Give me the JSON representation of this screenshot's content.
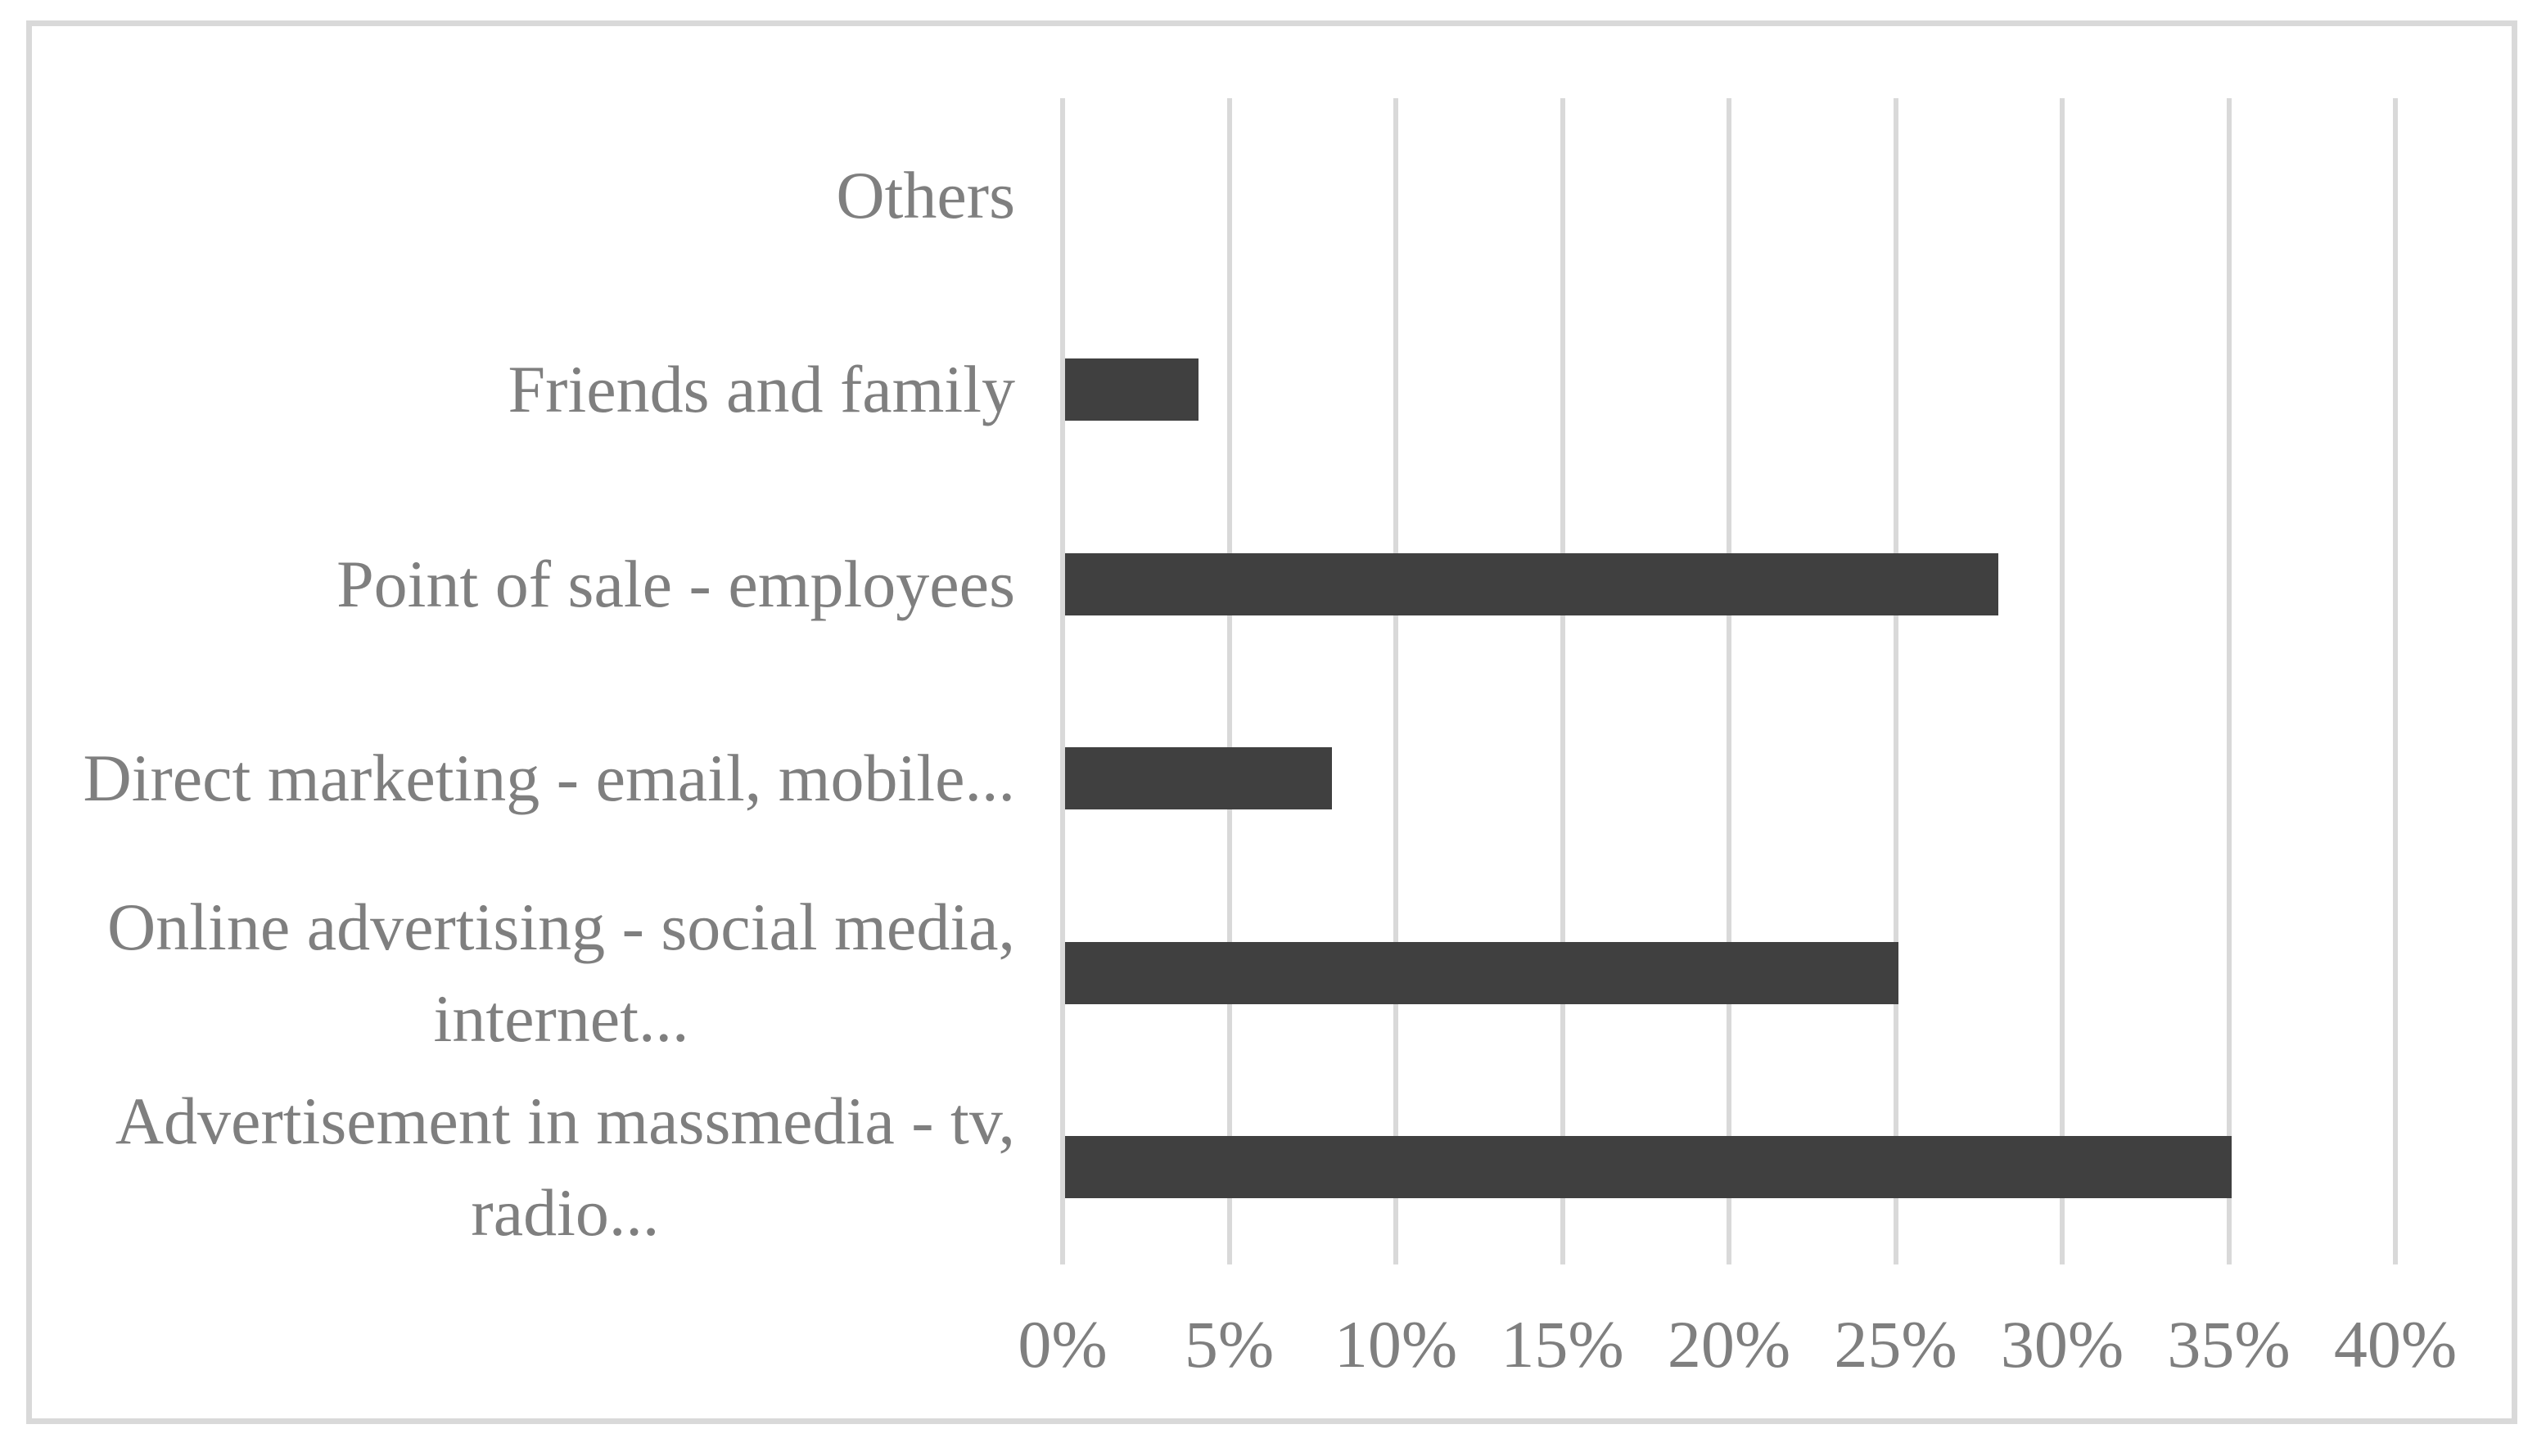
{
  "chart_data": {
    "type": "bar",
    "orientation": "horizontal",
    "title": "",
    "categories": [
      "Others",
      "Friends and family",
      "Point of sale - employees",
      "Direct marketing - email, mobile...",
      "Online advertising - social media,\ninternet...",
      "Advertisement in massmedia - tv,\nradio..."
    ],
    "values": [
      0,
      4,
      28,
      8,
      25,
      35
    ],
    "unit": "%",
    "xlabel": "",
    "ylabel": "",
    "xlim": [
      0,
      40
    ],
    "x_tick_step": 5,
    "x_ticks": [
      "0%",
      "5%",
      "10%",
      "15%",
      "20%",
      "25%",
      "30%",
      "35%",
      "40%"
    ],
    "grid": "vertical",
    "legend": "none",
    "colors": {
      "bar": "#404040",
      "gridline": "#d9d9d9",
      "text": "#7f7f7f",
      "frame_border": "#d9d9d9",
      "background": "#ffffff"
    }
  }
}
